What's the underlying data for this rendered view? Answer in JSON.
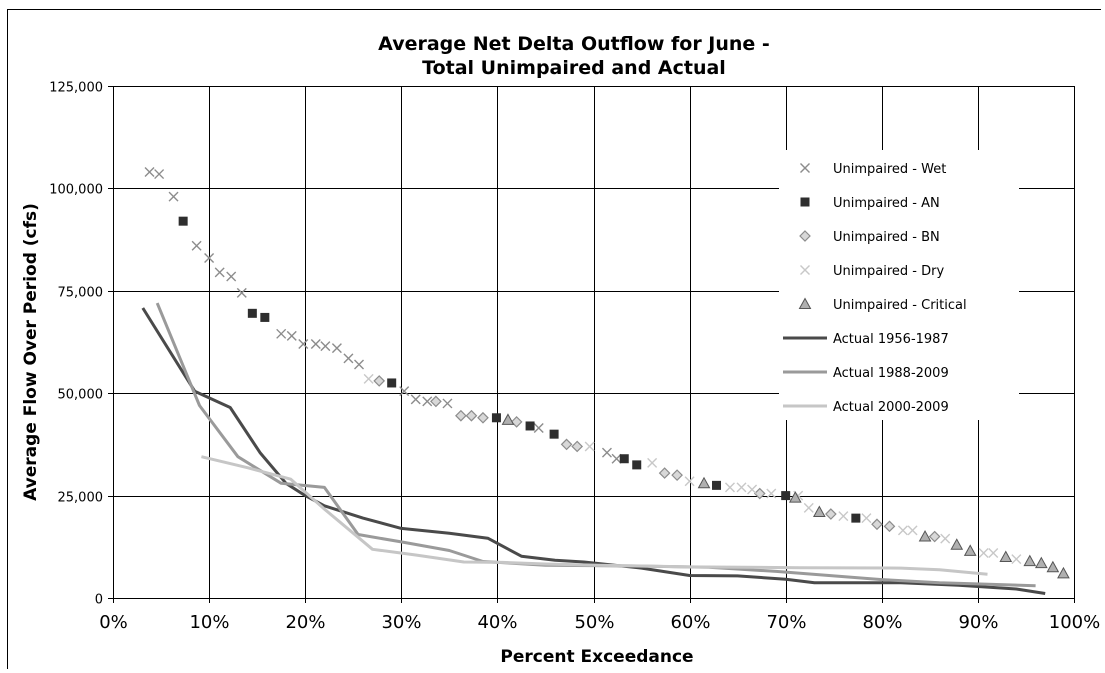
{
  "chart_data": {
    "type": "scatter",
    "title_line1": "Average Net Delta Outflow for June -",
    "title_line2": "Total Unimpaired and Actual",
    "xlabel": "Percent Exceedance",
    "ylabel": "Average Flow Over Period (cfs)",
    "xlim": [
      0,
      100
    ],
    "ylim": [
      0,
      125000
    ],
    "x_ticks": [
      "0%",
      "10%",
      "20%",
      "30%",
      "40%",
      "50%",
      "60%",
      "70%",
      "80%",
      "90%",
      "100%"
    ],
    "y_ticks": [
      "0",
      "25,000",
      "50,000",
      "75,000",
      "100,000",
      "125,000"
    ],
    "grid": true,
    "legend_position": "right",
    "series": [
      {
        "name": "Unimpaired - Wet",
        "kind": "marker",
        "marker": "x",
        "color": "#8c8c8c",
        "points": [
          [
            3.8,
            104000
          ],
          [
            4.8,
            103500
          ],
          [
            6.3,
            98000
          ],
          [
            8.7,
            86000
          ],
          [
            10.0,
            83000
          ],
          [
            11.1,
            79500
          ],
          [
            12.3,
            78500
          ],
          [
            13.4,
            74500
          ],
          [
            17.5,
            64500
          ],
          [
            18.6,
            64000
          ],
          [
            19.8,
            62000
          ],
          [
            21.1,
            62000
          ],
          [
            22.1,
            61500
          ],
          [
            23.3,
            61000
          ],
          [
            24.5,
            58500
          ],
          [
            25.6,
            57000
          ],
          [
            30.3,
            50500
          ],
          [
            31.5,
            48500
          ],
          [
            32.7,
            48000
          ],
          [
            34.8,
            47500
          ],
          [
            44.3,
            41500
          ],
          [
            51.4,
            35500
          ],
          [
            52.4,
            34000
          ]
        ]
      },
      {
        "name": "Unimpaired - AN",
        "kind": "marker",
        "marker": "square",
        "color": "#2e2e2e",
        "points": [
          [
            7.3,
            92000
          ],
          [
            14.5,
            69500
          ],
          [
            15.8,
            68500
          ],
          [
            29.0,
            52500
          ],
          [
            39.9,
            44000
          ],
          [
            43.4,
            42000
          ],
          [
            45.9,
            40000
          ],
          [
            53.2,
            34000
          ],
          [
            54.5,
            32500
          ],
          [
            62.8,
            27500
          ],
          [
            70.0,
            25000
          ],
          [
            77.3,
            19500
          ]
        ]
      },
      {
        "name": "Unimpaired - BN",
        "kind": "marker",
        "marker": "diamond",
        "color": "#8c8c8c",
        "points": [
          [
            27.7,
            53000
          ],
          [
            33.6,
            48000
          ],
          [
            36.2,
            44500
          ],
          [
            37.3,
            44500
          ],
          [
            38.5,
            44000
          ],
          [
            42.0,
            43000
          ],
          [
            47.2,
            37500
          ],
          [
            48.3,
            37000
          ],
          [
            57.4,
            30500
          ],
          [
            58.7,
            30000
          ],
          [
            67.3,
            25500
          ],
          [
            74.7,
            20500
          ],
          [
            79.5,
            18000
          ],
          [
            80.8,
            17500
          ],
          [
            85.5,
            15000
          ]
        ]
      },
      {
        "name": "Unimpaired - Dry",
        "kind": "marker",
        "marker": "x",
        "color": "#c8c8c8",
        "points": [
          [
            26.6,
            53500
          ],
          [
            49.6,
            37000
          ],
          [
            56.1,
            33000
          ],
          [
            60.0,
            28500
          ],
          [
            64.2,
            27000
          ],
          [
            65.4,
            27000
          ],
          [
            66.5,
            26500
          ],
          [
            68.5,
            25500
          ],
          [
            71.3,
            25000
          ],
          [
            72.4,
            22000
          ],
          [
            76.0,
            20000
          ],
          [
            78.4,
            19500
          ],
          [
            82.2,
            16500
          ],
          [
            83.2,
            16500
          ],
          [
            86.6,
            14500
          ],
          [
            90.6,
            11000
          ],
          [
            91.6,
            11000
          ],
          [
            94.0,
            9500
          ]
        ]
      },
      {
        "name": "Unimpaired - Critical",
        "kind": "marker",
        "marker": "triangle",
        "color": "#8c8c8c",
        "points": [
          [
            41.1,
            43500
          ],
          [
            61.5,
            28000
          ],
          [
            71.0,
            24500
          ],
          [
            73.5,
            21000
          ],
          [
            84.5,
            15000
          ],
          [
            87.8,
            13000
          ],
          [
            89.2,
            11500
          ],
          [
            92.9,
            10000
          ],
          [
            95.4,
            9000
          ],
          [
            96.6,
            8500
          ],
          [
            97.8,
            7500
          ],
          [
            98.9,
            6000
          ]
        ]
      },
      {
        "name": "Actual 1956-1987",
        "kind": "line",
        "color": "#4a4a4a",
        "points": [
          [
            3.1,
            70800
          ],
          [
            8.5,
            50500
          ],
          [
            12.2,
            46500
          ],
          [
            15.3,
            35500
          ],
          [
            18.0,
            28000
          ],
          [
            20.0,
            25000
          ],
          [
            22.0,
            22500
          ],
          [
            26.0,
            19500
          ],
          [
            30.0,
            17000
          ],
          [
            35.0,
            15800
          ],
          [
            39.0,
            14600
          ],
          [
            42.5,
            10200
          ],
          [
            46.0,
            9200
          ],
          [
            49.0,
            8800
          ],
          [
            55.0,
            7300
          ],
          [
            60.0,
            5500
          ],
          [
            65.0,
            5400
          ],
          [
            70.0,
            4600
          ],
          [
            73.0,
            3700
          ],
          [
            82.0,
            3700
          ],
          [
            88.0,
            3100
          ],
          [
            90.0,
            2800
          ],
          [
            94.0,
            2200
          ],
          [
            97.0,
            1100
          ]
        ]
      },
      {
        "name": "Actual 1988-2009",
        "kind": "line",
        "color": "#9a9a9a",
        "points": [
          [
            4.6,
            72000
          ],
          [
            9.0,
            47000
          ],
          [
            13.0,
            34500
          ],
          [
            17.5,
            28000
          ],
          [
            22.0,
            27000
          ],
          [
            25.5,
            15500
          ],
          [
            30.0,
            13700
          ],
          [
            35.0,
            11600
          ],
          [
            38.5,
            8900
          ],
          [
            45.0,
            8000
          ],
          [
            55.0,
            7800
          ],
          [
            62.0,
            7500
          ],
          [
            69.0,
            6500
          ],
          [
            80.0,
            4500
          ],
          [
            86.0,
            3700
          ],
          [
            96.0,
            3000
          ]
        ]
      },
      {
        "name": "Actual 2000-2009",
        "kind": "line",
        "color": "#c6c6c6",
        "points": [
          [
            9.2,
            34500
          ],
          [
            14.0,
            31800
          ],
          [
            18.5,
            29000
          ],
          [
            22.0,
            21700
          ],
          [
            27.0,
            11900
          ],
          [
            31.5,
            10500
          ],
          [
            36.5,
            8800
          ],
          [
            40.5,
            8700
          ],
          [
            45.0,
            8300
          ],
          [
            50.5,
            8000
          ],
          [
            60.0,
            7600
          ],
          [
            71.5,
            7400
          ],
          [
            82.0,
            7300
          ],
          [
            86.0,
            6900
          ],
          [
            91.0,
            5800
          ]
        ]
      }
    ]
  }
}
